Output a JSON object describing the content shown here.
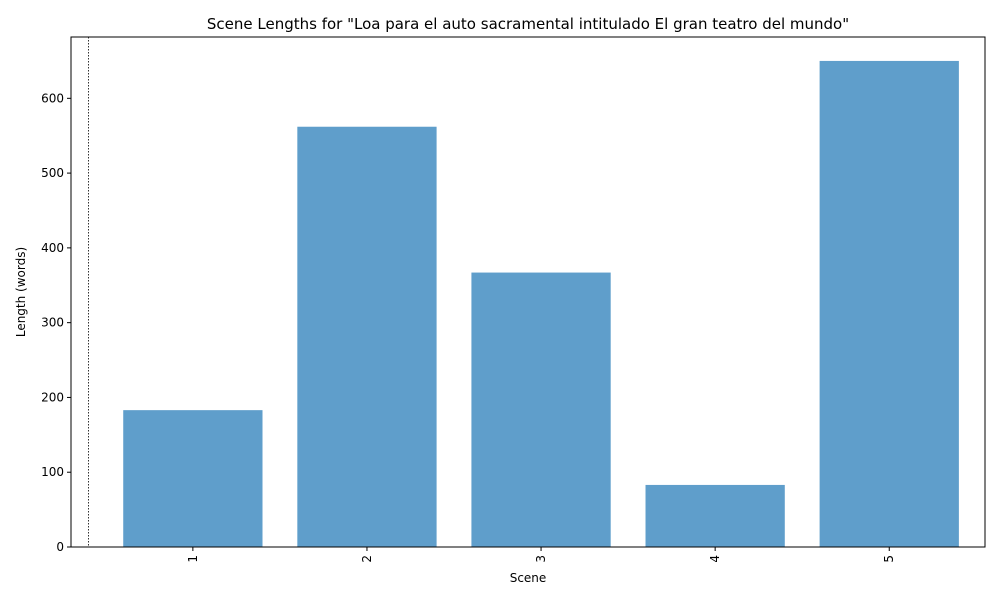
{
  "chart_data": {
    "type": "bar",
    "title": "Scene Lengths for \"Loa para el auto sacramental intitulado El gran teatro del mundo\"",
    "xlabel": "Scene",
    "ylabel": "Length (words)",
    "categories": [
      "1",
      "2",
      "3",
      "4",
      "5"
    ],
    "values": [
      183,
      562,
      367,
      83,
      650
    ],
    "ylim": [
      0,
      682
    ],
    "yticks": [
      0,
      100,
      200,
      300,
      400,
      500,
      600
    ],
    "xtick_rotation": "vertical",
    "grid": false,
    "legend": "none",
    "bar_color": "#5f9ecb",
    "reference_line": {
      "x_position_scene": 0.4,
      "style": "dotted"
    }
  }
}
